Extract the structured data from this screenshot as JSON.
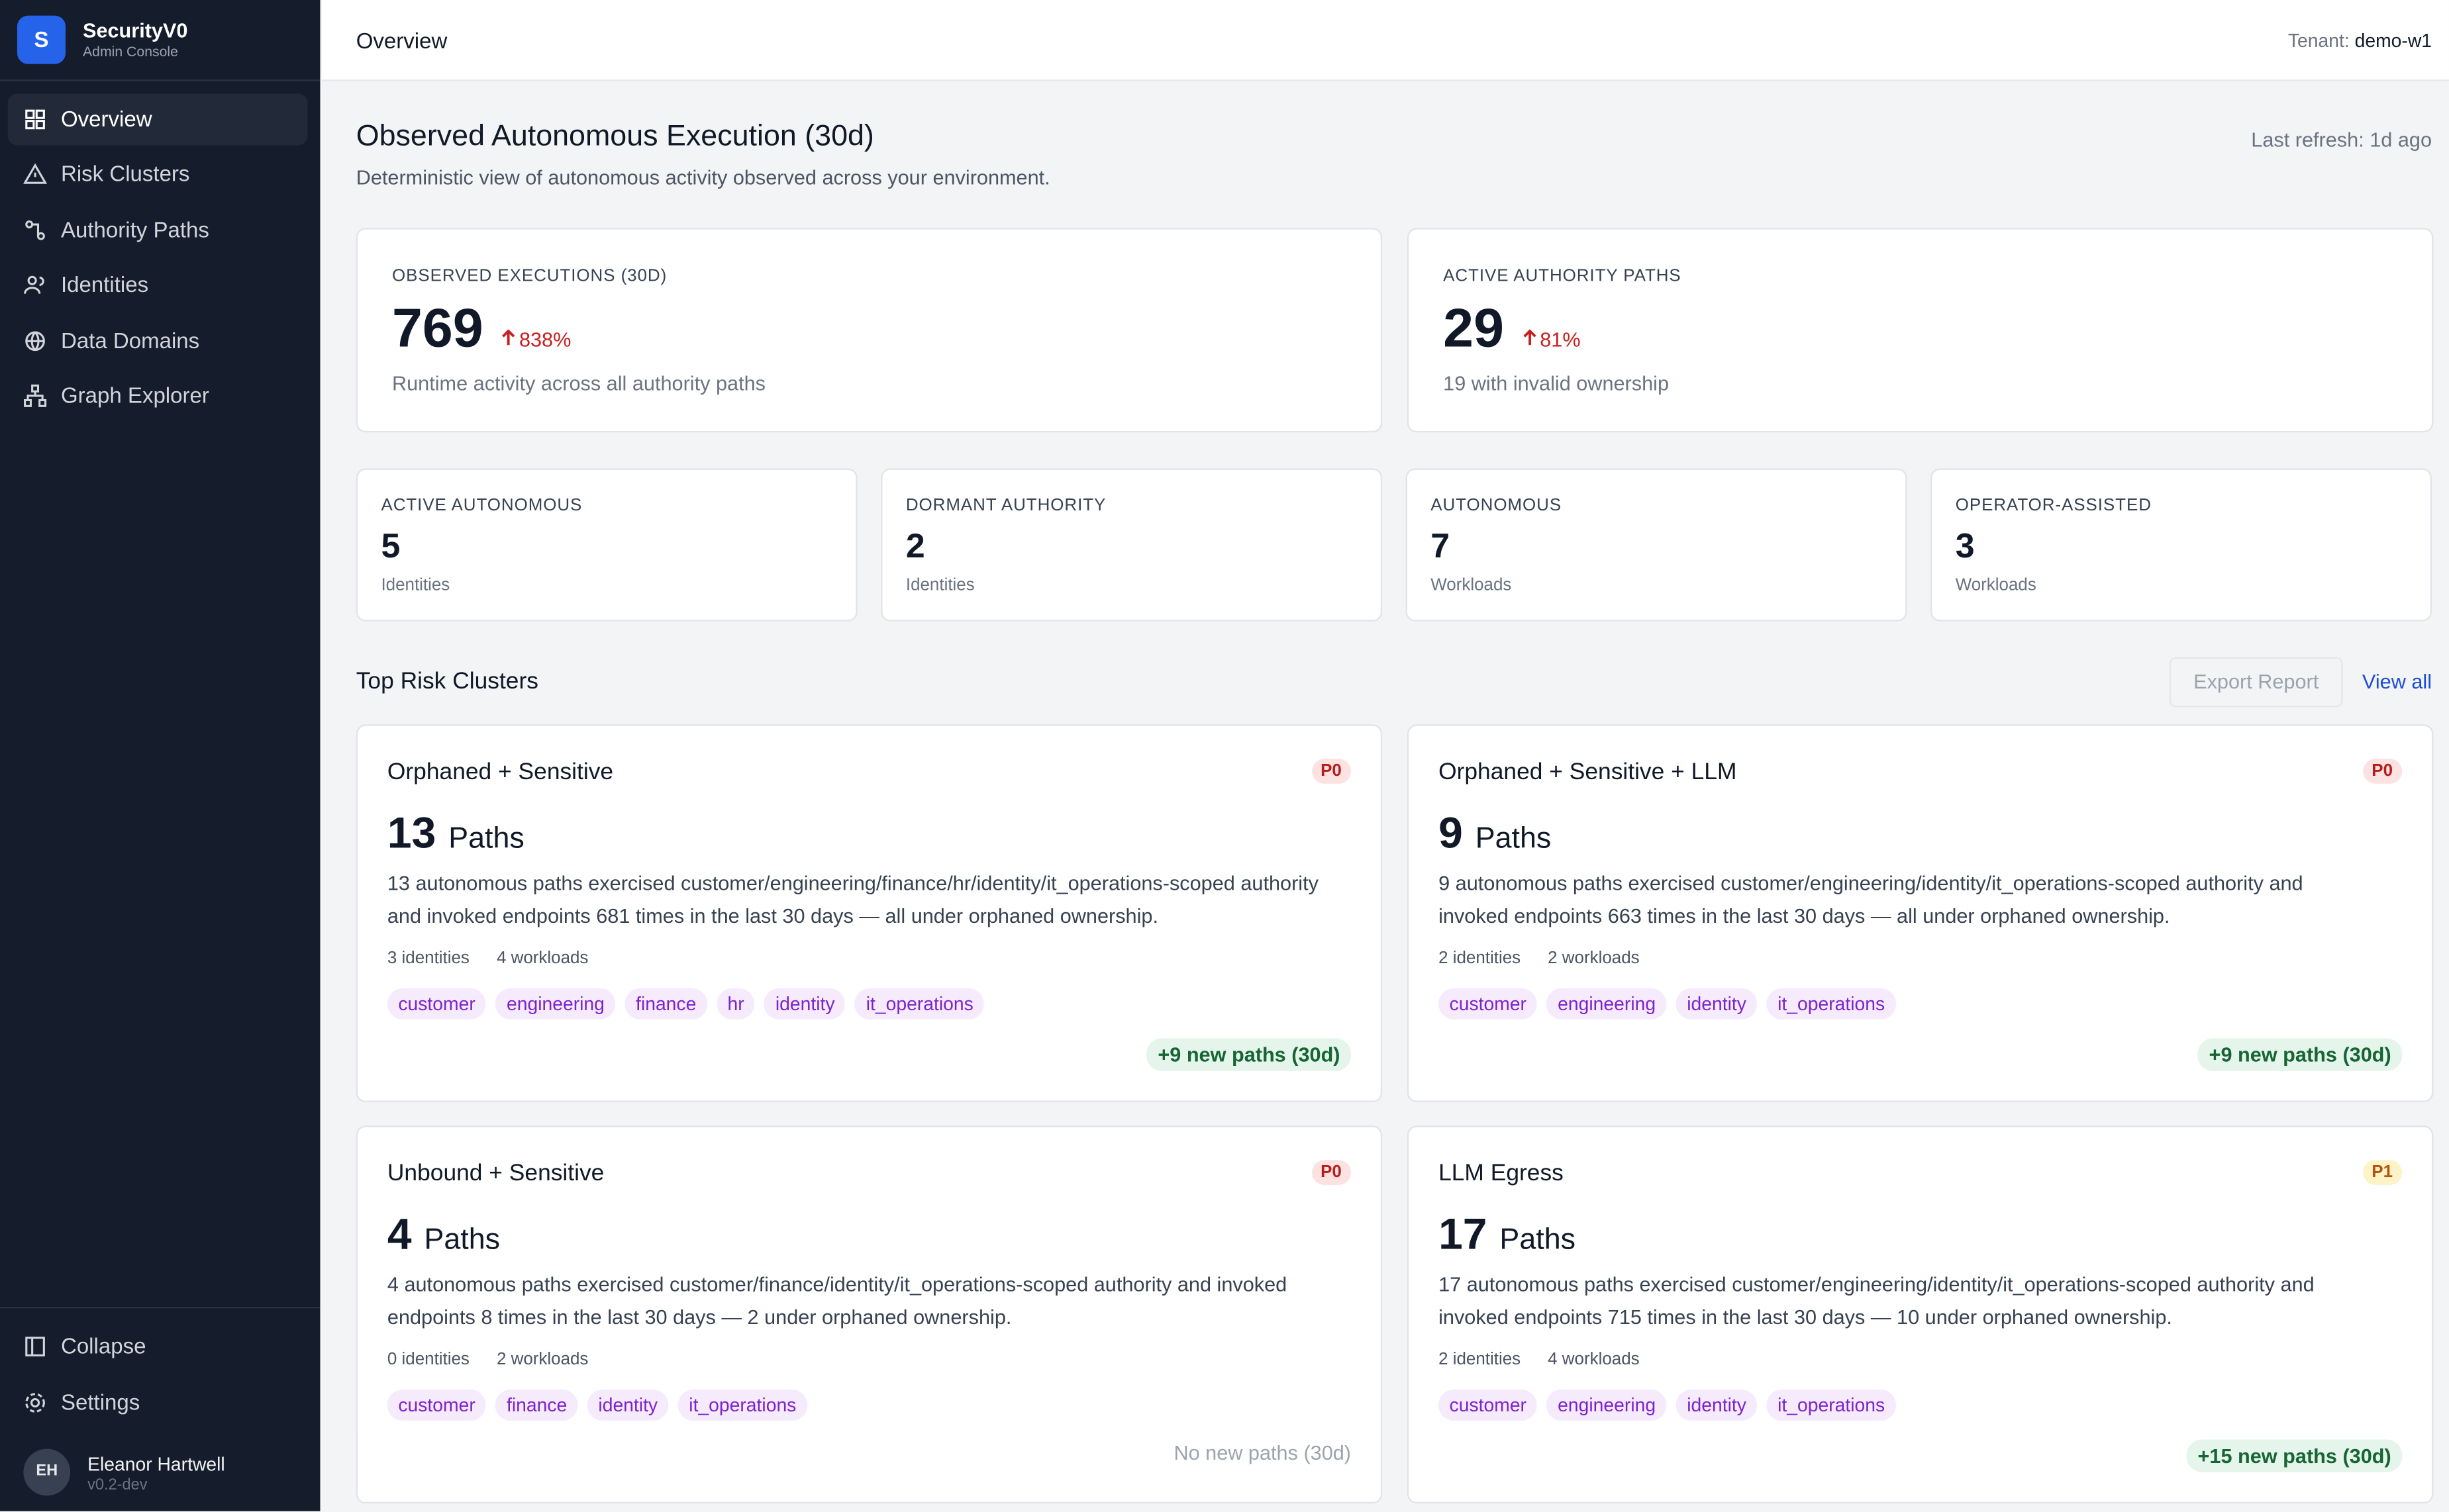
{
  "sidebar": {
    "logo": "S",
    "name": "SecurityV0",
    "subtitle": "Admin Console",
    "nav": [
      "Overview",
      "Risk Clusters",
      "Authority Paths",
      "Identities",
      "Data Domains",
      "Graph Explorer"
    ],
    "footer": [
      "Collapse",
      "Settings"
    ],
    "user": {
      "initials": "EH",
      "name": "Eleanor Hartwell",
      "version": "v0.2-dev"
    }
  },
  "header": {
    "title": "Overview",
    "tenant_label": "Tenant:",
    "tenant": "demo-w1"
  },
  "page": {
    "title": "Observed Autonomous Execution (30d)",
    "subtitle": "Deterministic view of autonomous activity observed across your environment.",
    "refresh": "Last refresh: 1d ago"
  },
  "kpis": [
    {
      "label": "OBSERVED EXECUTIONS (30D)",
      "value": "769",
      "change": "838%",
      "note": "Runtime activity across all authority paths"
    },
    {
      "label": "ACTIVE AUTHORITY PATHS",
      "value": "29",
      "change": "81%",
      "note": "19 with invalid ownership"
    }
  ],
  "stats": [
    {
      "label": "ACTIVE AUTONOMOUS",
      "value": "5",
      "note": "Identities"
    },
    {
      "label": "DORMANT AUTHORITY",
      "value": "2",
      "note": "Identities"
    },
    {
      "label": "AUTONOMOUS",
      "value": "7",
      "note": "Workloads"
    },
    {
      "label": "OPERATOR-ASSISTED",
      "value": "3",
      "note": "Workloads"
    }
  ],
  "clusters_section": {
    "title": "Top Risk Clusters",
    "export": "Export Report",
    "view_all": "View all"
  },
  "clusters": [
    {
      "name": "Orphaned + Sensitive",
      "priority": "P0",
      "priority_color": "red",
      "count": "13",
      "unit": "Paths",
      "description": "13 autonomous paths exercised customer/engineering/finance/hr/identity/it_operations-scoped authority and invoked endpoints 681 times in the last 30 days — all under orphaned ownership.",
      "identities": "3 identities",
      "workloads": "4 workloads",
      "tags": [
        "customer",
        "engineering",
        "finance",
        "hr",
        "identity",
        "it_operations"
      ],
      "trend": "+9 new paths (30d)",
      "trend_highlight": true
    },
    {
      "name": "Orphaned + Sensitive + LLM",
      "priority": "P0",
      "priority_color": "red",
      "count": "9",
      "unit": "Paths",
      "description": "9 autonomous paths exercised customer/engineering/identity/it_operations-scoped authority and invoked endpoints 663 times in the last 30 days — all under orphaned ownership.",
      "identities": "2 identities",
      "workloads": "2 workloads",
      "tags": [
        "customer",
        "engineering",
        "identity",
        "it_operations"
      ],
      "trend": "+9 new paths (30d)",
      "trend_highlight": true
    },
    {
      "name": "Unbound + Sensitive",
      "priority": "P0",
      "priority_color": "red",
      "count": "4",
      "unit": "Paths",
      "description": "4 autonomous paths exercised customer/finance/identity/it_operations-scoped authority and invoked endpoints 8 times in the last 30 days — 2 under orphaned ownership.",
      "identities": "0 identities",
      "workloads": "2 workloads",
      "tags": [
        "customer",
        "finance",
        "identity",
        "it_operations"
      ],
      "trend": "No new paths (30d)",
      "trend_highlight": false
    },
    {
      "name": "LLM Egress",
      "priority": "P1",
      "priority_color": "amber",
      "count": "17",
      "unit": "Paths",
      "description": "17 autonomous paths exercised customer/engineering/identity/it_operations-scoped authority and invoked endpoints 715 times in the last 30 days — 10 under orphaned ownership.",
      "identities": "2 identities",
      "workloads": "4 workloads",
      "tags": [
        "customer",
        "engineering",
        "identity",
        "it_operations"
      ],
      "trend": "+15 new paths (30d)",
      "trend_highlight": true
    }
  ]
}
